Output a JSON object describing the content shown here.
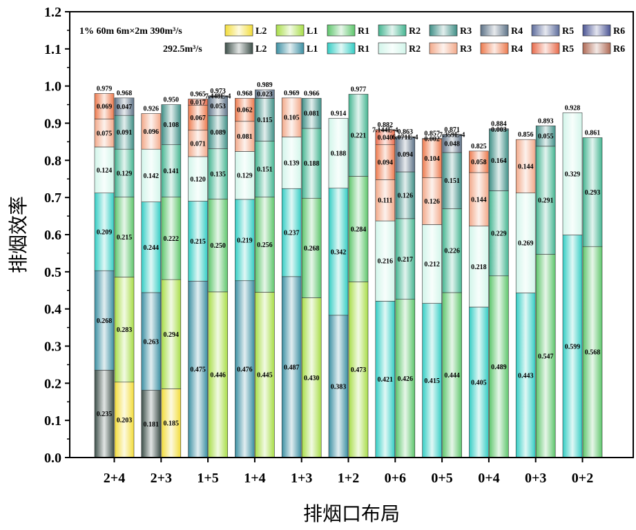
{
  "chart_data": {
    "type": "bar",
    "stacked": true,
    "xlabel": "排烟口布局",
    "ylabel": "排烟效率",
    "ylim": [
      0,
      1.2
    ],
    "yticks": [
      "0.0",
      "0.1",
      "0.2",
      "0.3",
      "0.4",
      "0.5",
      "0.6",
      "0.7",
      "0.8",
      "0.9",
      "1.0",
      "1.1",
      "1.2"
    ],
    "categories": [
      "2+4",
      "2+3",
      "1+5",
      "1+4",
      "1+3",
      "1+2",
      "0+6",
      "0+5",
      "0+4",
      "0+3",
      "0+2"
    ],
    "legend": {
      "position": "top",
      "row1_prefix": "1%  60m 6m×2m 390m³/s",
      "row2_prefix": "292.5m³/s",
      "names": [
        "L2",
        "L1",
        "R1",
        "R2",
        "R3",
        "R4",
        "R5",
        "R6"
      ]
    },
    "colors": {
      "group_a": {
        "L2": "#f2dc3a",
        "L1": "#a8dd48",
        "R1": "#5ec66c",
        "R2": "#45b591",
        "R3": "#3f8f86",
        "R4": "#5e7388",
        "R5": "#5d6c9c",
        "R6": "#4a5494"
      },
      "group_b": {
        "L2": "#3d4f49",
        "L1": "#3b8fa2",
        "R1": "#34cdc4",
        "R2": "#d2f5ea",
        "R3": "#f2a98a",
        "R4": "#ed7a4e",
        "R5": "#e86a4a",
        "R6": "#b06a55"
      }
    },
    "series_order": [
      "L2",
      "L1",
      "R1",
      "R2",
      "R3",
      "R4",
      "R5",
      "R6"
    ],
    "series": [
      {
        "name": "L2",
        "group": "a"
      },
      {
        "name": "L1",
        "group": "a"
      },
      {
        "name": "R1",
        "group": "a"
      },
      {
        "name": "R2",
        "group": "a"
      },
      {
        "name": "R3",
        "group": "a"
      },
      {
        "name": "R4",
        "group": "a"
      },
      {
        "name": "R5",
        "group": "a"
      },
      {
        "name": "R6",
        "group": "a"
      },
      {
        "name": "L2",
        "group": "b"
      },
      {
        "name": "L1",
        "group": "b"
      },
      {
        "name": "R1",
        "group": "b"
      },
      {
        "name": "R2",
        "group": "b"
      },
      {
        "name": "R3",
        "group": "b"
      },
      {
        "name": "R4",
        "group": "b"
      },
      {
        "name": "R5",
        "group": "b"
      },
      {
        "name": "R6",
        "group": "b"
      }
    ],
    "bars": [
      {
        "category": "2+4",
        "group": "b",
        "total": "0.979",
        "segments": [
          {
            "s": "L2",
            "v": 0.235,
            "t": "0.235"
          },
          {
            "s": "L1",
            "v": 0.268,
            "t": "0.268"
          },
          {
            "s": "R1",
            "v": 0.209,
            "t": "0.209"
          },
          {
            "s": "R2",
            "v": 0.124,
            "t": "0.124"
          },
          {
            "s": "R3",
            "v": 0.075,
            "t": "0.075"
          },
          {
            "s": "R4",
            "v": 0.069,
            "t": "0.069"
          }
        ]
      },
      {
        "category": "2+4",
        "group": "a",
        "total": "0.968",
        "segments": [
          {
            "s": "L2",
            "v": 0.203,
            "t": "0.203"
          },
          {
            "s": "L1",
            "v": 0.283,
            "t": "0.283"
          },
          {
            "s": "R1",
            "v": 0.215,
            "t": "0.215"
          },
          {
            "s": "R2",
            "v": 0.129,
            "t": "0.129"
          },
          {
            "s": "R3",
            "v": 0.091,
            "t": "0.091"
          },
          {
            "s": "R4",
            "v": 0.047,
            "t": "0.047"
          }
        ]
      },
      {
        "category": "2+3",
        "group": "b",
        "total": "0.926",
        "segments": [
          {
            "s": "L2",
            "v": 0.181,
            "t": "0.181"
          },
          {
            "s": "L1",
            "v": 0.263,
            "t": "0.263"
          },
          {
            "s": "R1",
            "v": 0.244,
            "t": "0.244"
          },
          {
            "s": "R2",
            "v": 0.142,
            "t": "0.142"
          },
          {
            "s": "R3",
            "v": 0.096,
            "t": "0.096"
          }
        ]
      },
      {
        "category": "2+3",
        "group": "a",
        "total": "0.950",
        "segments": [
          {
            "s": "L2",
            "v": 0.185,
            "t": "0.185"
          },
          {
            "s": "L1",
            "v": 0.294,
            "t": "0.294"
          },
          {
            "s": "R1",
            "v": 0.222,
            "t": "0.222"
          },
          {
            "s": "R2",
            "v": 0.141,
            "t": "0.141"
          },
          {
            "s": "R3",
            "v": 0.108,
            "t": "0.108"
          }
        ]
      },
      {
        "category": "1+5",
        "group": "b",
        "total": "0.965",
        "segments": [
          {
            "s": "L1",
            "v": 0.475,
            "t": "0.475"
          },
          {
            "s": "R1",
            "v": 0.215,
            "t": "0.215"
          },
          {
            "s": "R2",
            "v": 0.12,
            "t": "0.120"
          },
          {
            "s": "R3",
            "v": 0.071,
            "t": "0.071"
          },
          {
            "s": "R4",
            "v": 0.067,
            "t": "0.067"
          },
          {
            "s": "R5",
            "v": 0.017,
            "t": "0.017"
          }
        ]
      },
      {
        "category": "1+5",
        "group": "a",
        "total": "0.973",
        "segments": [
          {
            "s": "L1",
            "v": 0.446,
            "t": "0.446"
          },
          {
            "s": "R1",
            "v": 0.25,
            "t": "0.250"
          },
          {
            "s": "R2",
            "v": 0.135,
            "t": "0.135"
          },
          {
            "s": "R3",
            "v": 0.089,
            "t": "0.089"
          },
          {
            "s": "R4",
            "v": 0.053,
            "t": "0.053"
          },
          {
            "s": "R5",
            "v": 0.0007448,
            "t": "7.448E-4"
          }
        ]
      },
      {
        "category": "1+4",
        "group": "b",
        "total": "0.968",
        "segments": [
          {
            "s": "L1",
            "v": 0.476,
            "t": "0.476"
          },
          {
            "s": "R1",
            "v": 0.219,
            "t": "0.219"
          },
          {
            "s": "R2",
            "v": 0.129,
            "t": "0.129"
          },
          {
            "s": "R3",
            "v": 0.081,
            "t": "0.081"
          },
          {
            "s": "R4",
            "v": 0.062,
            "t": "0.062"
          }
        ]
      },
      {
        "category": "1+4",
        "group": "a",
        "total": "0.989",
        "segments": [
          {
            "s": "L1",
            "v": 0.445,
            "t": "0.445"
          },
          {
            "s": "R1",
            "v": 0.256,
            "t": "0.256"
          },
          {
            "s": "R2",
            "v": 0.151,
            "t": "0.151"
          },
          {
            "s": "R3",
            "v": 0.115,
            "t": "0.115"
          },
          {
            "s": "R4",
            "v": 0.023,
            "t": "0.023"
          }
        ]
      },
      {
        "category": "1+3",
        "group": "b",
        "total": "0.969",
        "segments": [
          {
            "s": "L1",
            "v": 0.487,
            "t": "0.487"
          },
          {
            "s": "R1",
            "v": 0.237,
            "t": "0.237"
          },
          {
            "s": "R2",
            "v": 0.139,
            "t": "0.139"
          },
          {
            "s": "R3",
            "v": 0.105,
            "t": "0.105"
          }
        ]
      },
      {
        "category": "1+3",
        "group": "a",
        "total": "0.966",
        "segments": [
          {
            "s": "L1",
            "v": 0.43,
            "t": "0.430"
          },
          {
            "s": "R1",
            "v": 0.268,
            "t": "0.268"
          },
          {
            "s": "R2",
            "v": 0.188,
            "t": "0.188"
          },
          {
            "s": "R3",
            "v": 0.081,
            "t": "0.081"
          }
        ]
      },
      {
        "category": "1+2",
        "group": "b",
        "total": "0.914",
        "segments": [
          {
            "s": "L1",
            "v": 0.383,
            "t": "0.383"
          },
          {
            "s": "R1",
            "v": 0.342,
            "t": "0.342"
          },
          {
            "s": "R2",
            "v": 0.188,
            "t": "0.188"
          }
        ]
      },
      {
        "category": "1+2",
        "group": "a",
        "total": "0.977",
        "segments": [
          {
            "s": "L1",
            "v": 0.473,
            "t": "0.473"
          },
          {
            "s": "R1",
            "v": 0.284,
            "t": "0.284"
          },
          {
            "s": "R2",
            "v": 0.221,
            "t": "0.221"
          }
        ]
      },
      {
        "category": "0+6",
        "group": "b",
        "total": "0.882",
        "segments": [
          {
            "s": "R1",
            "v": 0.421,
            "t": "0.421"
          },
          {
            "s": "R2",
            "v": 0.216,
            "t": "0.216"
          },
          {
            "s": "R3",
            "v": 0.111,
            "t": "0.111"
          },
          {
            "s": "R4",
            "v": 0.094,
            "t": "0.094"
          },
          {
            "s": "R5",
            "v": 0.04,
            "t": "0.040"
          },
          {
            "s": "R6",
            "v": 0.000714,
            "t": "7.144E-4"
          }
        ]
      },
      {
        "category": "0+6",
        "group": "a",
        "total": "0.863",
        "segments": [
          {
            "s": "R1",
            "v": 0.426,
            "t": "0.426"
          },
          {
            "s": "R2",
            "v": 0.217,
            "t": "0.217"
          },
          {
            "s": "R3",
            "v": 0.126,
            "t": "0.126"
          },
          {
            "s": "R4",
            "v": 0.094,
            "t": "0.094"
          },
          {
            "s": "R5",
            "v": 0.00061,
            "t": "6.071E-4"
          }
        ]
      },
      {
        "category": "0+5",
        "group": "b",
        "total": "0.857",
        "segments": [
          {
            "s": "R1",
            "v": 0.415,
            "t": "0.415"
          },
          {
            "s": "R2",
            "v": 0.212,
            "t": "0.212"
          },
          {
            "s": "R3",
            "v": 0.126,
            "t": "0.126"
          },
          {
            "s": "R4",
            "v": 0.104,
            "t": "0.104"
          },
          {
            "s": "R5",
            "v": 0.002,
            "t": "0.002"
          }
        ]
      },
      {
        "category": "0+5",
        "group": "a",
        "total": "0.871",
        "segments": [
          {
            "s": "R1",
            "v": 0.444,
            "t": "0.444"
          },
          {
            "s": "R2",
            "v": 0.226,
            "t": "0.226"
          },
          {
            "s": "R3",
            "v": 0.151,
            "t": "0.151"
          },
          {
            "s": "R4",
            "v": 0.048,
            "t": "0.048"
          },
          {
            "s": "R5",
            "v": 0.00074,
            "t": "7.359E-4"
          }
        ]
      },
      {
        "category": "0+4",
        "group": "b",
        "total": "0.825",
        "segments": [
          {
            "s": "R1",
            "v": 0.405,
            "t": "0.405"
          },
          {
            "s": "R2",
            "v": 0.218,
            "t": "0.218"
          },
          {
            "s": "R3",
            "v": 0.144,
            "t": "0.144"
          },
          {
            "s": "R4",
            "v": 0.058,
            "t": "0.058"
          }
        ]
      },
      {
        "category": "0+4",
        "group": "a",
        "total": "0.884",
        "segments": [
          {
            "s": "R1",
            "v": 0.489,
            "t": "0.489"
          },
          {
            "s": "R2",
            "v": 0.229,
            "t": "0.229"
          },
          {
            "s": "R3",
            "v": 0.164,
            "t": "0.164"
          },
          {
            "s": "R4",
            "v": 0.003,
            "t": "0.003"
          }
        ]
      },
      {
        "category": "0+3",
        "group": "b",
        "total": "0.856",
        "segments": [
          {
            "s": "R1",
            "v": 0.443,
            "t": "0.443"
          },
          {
            "s": "R2",
            "v": 0.269,
            "t": "0.269"
          },
          {
            "s": "R3",
            "v": 0.144,
            "t": "0.144"
          }
        ]
      },
      {
        "category": "0+3",
        "group": "a",
        "total": "0.893",
        "segments": [
          {
            "s": "R1",
            "v": 0.547,
            "t": "0.547"
          },
          {
            "s": "R2",
            "v": 0.291,
            "t": "0.291"
          },
          {
            "s": "R3",
            "v": 0.055,
            "t": "0.055"
          }
        ]
      },
      {
        "category": "0+2",
        "group": "b",
        "total": "0.928",
        "segments": [
          {
            "s": "R1",
            "v": 0.599,
            "t": "0.599"
          },
          {
            "s": "R2",
            "v": 0.329,
            "t": "0.329"
          }
        ]
      },
      {
        "category": "0+2",
        "group": "a",
        "total": "0.861",
        "segments": [
          {
            "s": "R1",
            "v": 0.568,
            "t": "0.568"
          },
          {
            "s": "R2",
            "v": 0.293,
            "t": "0.293"
          }
        ]
      }
    ]
  }
}
